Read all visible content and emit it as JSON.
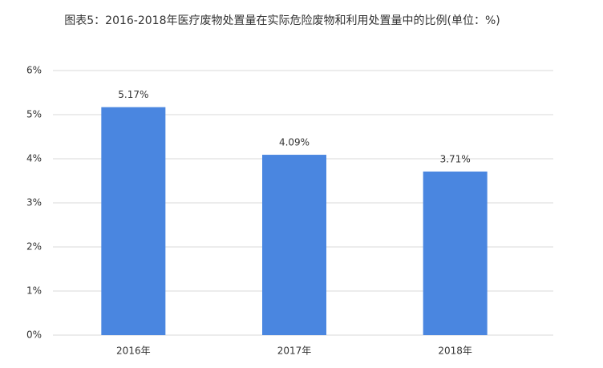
{
  "chart_data": {
    "type": "bar",
    "title": "图表5：2016-2018年医疗废物处置量在实际危险废物和利用处置量中的比例(单位：%)",
    "categories": [
      "2016年",
      "2017年",
      "2018年"
    ],
    "values": [
      5.17,
      4.09,
      3.71
    ],
    "value_labels": [
      "5.17%",
      "4.09%",
      "3.71%"
    ],
    "color": "#4a86e0",
    "ylim": [
      0,
      6
    ],
    "yticks": [
      {
        "value": 0,
        "label": "0%"
      },
      {
        "value": 1,
        "label": "1%"
      },
      {
        "value": 2,
        "label": "2%"
      },
      {
        "value": 3,
        "label": "3%"
      },
      {
        "value": 4,
        "label": "4%"
      },
      {
        "value": 5,
        "label": "5%"
      },
      {
        "value": 6,
        "label": "6%"
      }
    ],
    "grid": true
  }
}
